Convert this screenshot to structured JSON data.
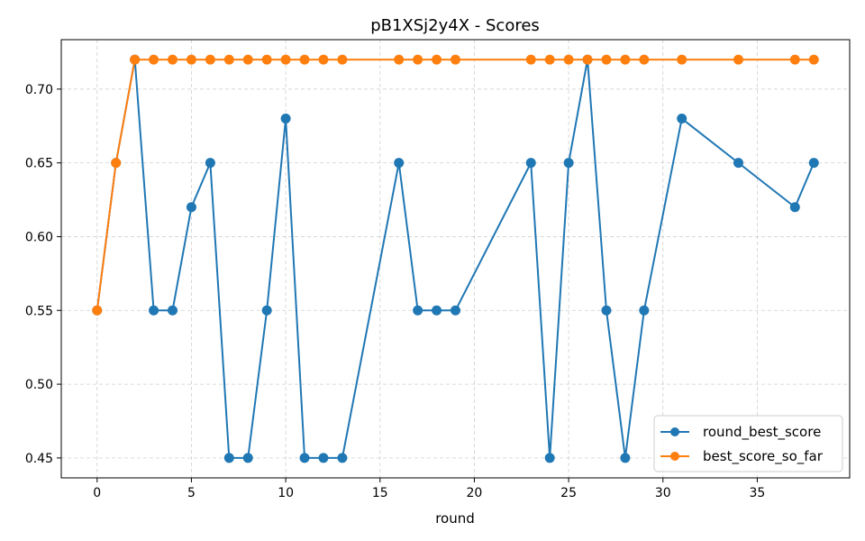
{
  "chart_data": {
    "type": "line",
    "title": "pB1XSj2y4X - Scores",
    "xlabel": "round",
    "ylabel": "",
    "xlim": [
      -1.9,
      39.9
    ],
    "ylim": [
      0.4365,
      0.7335
    ],
    "xticks": [
      0,
      5,
      10,
      15,
      20,
      25,
      30,
      35
    ],
    "xtick_labels": [
      "0",
      "5",
      "10",
      "15",
      "20",
      "25",
      "30",
      "35"
    ],
    "yticks": [
      0.45,
      0.5,
      0.55,
      0.6,
      0.65,
      0.7
    ],
    "ytick_labels": [
      "0.45",
      "0.50",
      "0.55",
      "0.60",
      "0.65",
      "0.70"
    ],
    "grid": true,
    "legend_position": "bottom-right",
    "series": [
      {
        "name": "round_best_score",
        "color": "#1f77b4",
        "x": [
          0,
          1,
          2,
          3,
          4,
          5,
          6,
          7,
          8,
          9,
          10,
          11,
          12,
          13,
          16,
          17,
          18,
          19,
          23,
          24,
          25,
          26,
          27,
          28,
          29,
          31,
          34,
          37,
          38
        ],
        "y": [
          0.55,
          0.65,
          0.72,
          0.55,
          0.55,
          0.62,
          0.65,
          0.45,
          0.45,
          0.55,
          0.68,
          0.45,
          0.45,
          0.45,
          0.65,
          0.55,
          0.55,
          0.55,
          0.65,
          0.45,
          0.65,
          0.72,
          0.55,
          0.45,
          0.55,
          0.68,
          0.65,
          0.62,
          0.65
        ]
      },
      {
        "name": "best_score_so_far",
        "color": "#ff7f0e",
        "x": [
          0,
          1,
          2,
          3,
          4,
          5,
          6,
          7,
          8,
          9,
          10,
          11,
          12,
          13,
          16,
          17,
          18,
          19,
          23,
          24,
          25,
          26,
          27,
          28,
          29,
          31,
          34,
          37,
          38
        ],
        "y": [
          0.55,
          0.65,
          0.72,
          0.72,
          0.72,
          0.72,
          0.72,
          0.72,
          0.72,
          0.72,
          0.72,
          0.72,
          0.72,
          0.72,
          0.72,
          0.72,
          0.72,
          0.72,
          0.72,
          0.72,
          0.72,
          0.72,
          0.72,
          0.72,
          0.72,
          0.72,
          0.72,
          0.72,
          0.72
        ]
      }
    ]
  }
}
